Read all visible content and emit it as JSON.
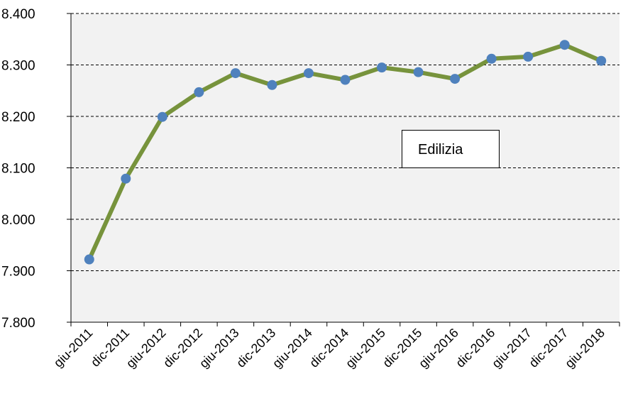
{
  "chart_data": {
    "type": "line",
    "title": "",
    "xlabel": "",
    "ylabel": "",
    "categories": [
      "giu-2011",
      "dic-2011",
      "giu-2012",
      "dic-2012",
      "giu-2013",
      "dic-2013",
      "giu-2014",
      "dic-2014",
      "giu-2015",
      "dic-2015",
      "giu-2016",
      "dic-2016",
      "giu-2017",
      "dic-2017",
      "giu-2018"
    ],
    "series": [
      {
        "name": "Edilizia",
        "values": [
          7.922,
          8.079,
          8.199,
          8.247,
          8.284,
          8.261,
          8.284,
          8.271,
          8.295,
          8.286,
          8.273,
          8.312,
          8.316,
          8.339,
          8.308
        ]
      }
    ],
    "ylim": [
      7.8,
      8.4
    ],
    "yticks": [
      7.8,
      7.9,
      8.0,
      8.1,
      8.2,
      8.3,
      8.4
    ],
    "ytick_labels": [
      "7.800",
      "7.900",
      "8.000",
      "8.100",
      "8.200",
      "8.300",
      "8.400"
    ],
    "grid": "horizontal dashed",
    "legend": "center-right",
    "colors": {
      "line": "#77933C",
      "marker": "#4F81BD",
      "plot_background": "#F2F2F2",
      "gridline": "#000000"
    }
  }
}
